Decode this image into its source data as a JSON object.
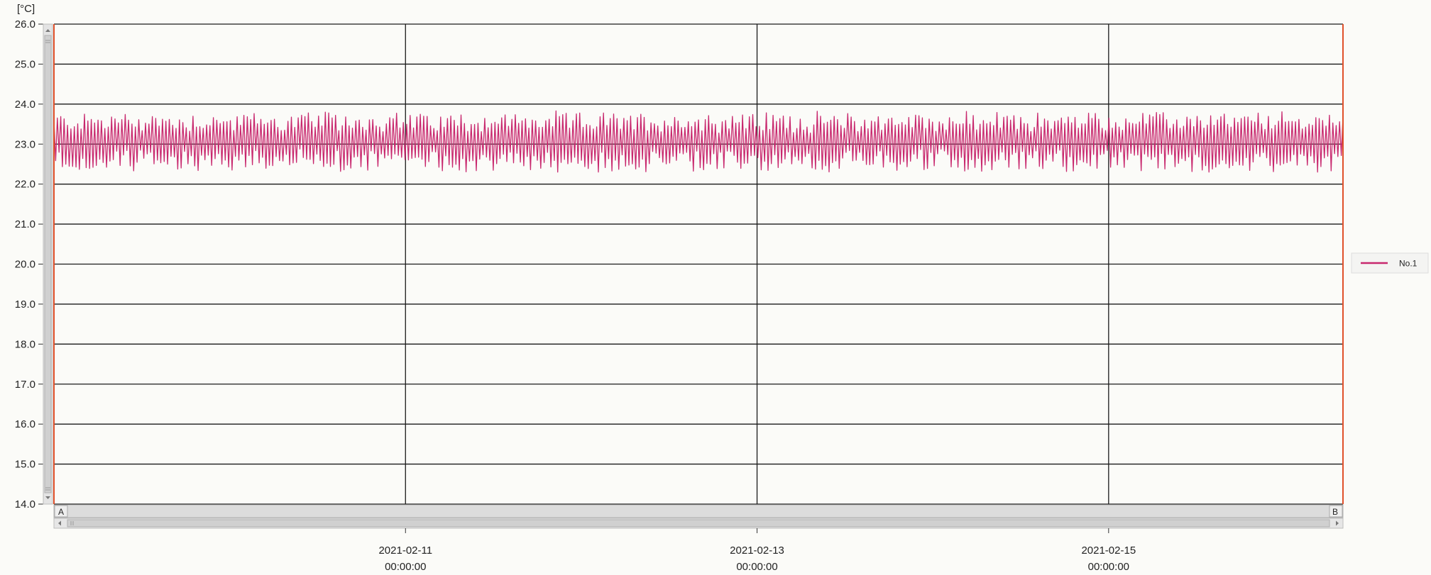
{
  "colors": {
    "background": "#fbfbf8",
    "grid": "#1a1a1a",
    "series": "#c8286e",
    "plot_border_right": "#e0502a",
    "plot_border_left": "#e0502a",
    "scrollbar": "#d8d8d8"
  },
  "unit_label": "[°C]",
  "scroll": {
    "left_marker": "A",
    "right_marker": "B",
    "up_icon": "scroll-up-icon",
    "down_icon": "scroll-down-icon",
    "left_icon": "scroll-left-icon",
    "right_icon": "scroll-right-icon"
  },
  "chart_data": {
    "type": "line",
    "title": "",
    "xlabel": "",
    "ylabel": "[°C]",
    "ylim": [
      14.0,
      26.0
    ],
    "y_ticks": [
      "26.0",
      "25.0",
      "24.0",
      "23.0",
      "22.0",
      "21.0",
      "20.0",
      "19.0",
      "18.0",
      "17.0",
      "16.0",
      "15.0",
      "14.0"
    ],
    "xlim": [
      "2021-02-09 00:00:00",
      "2021-02-16 08:00:00"
    ],
    "x_ticks": [
      {
        "date": "2021-02-11",
        "time": "00:00:00"
      },
      {
        "date": "2021-02-13",
        "time": "00:00:00"
      },
      {
        "date": "2021-02-15",
        "time": "00:00:00"
      }
    ],
    "grid": true,
    "legend_position": "right",
    "series": [
      {
        "name": "No.1",
        "color": "#c8286e",
        "mean": 23.1,
        "min": 22.3,
        "max": 23.85,
        "pattern": "oscillating"
      }
    ]
  }
}
